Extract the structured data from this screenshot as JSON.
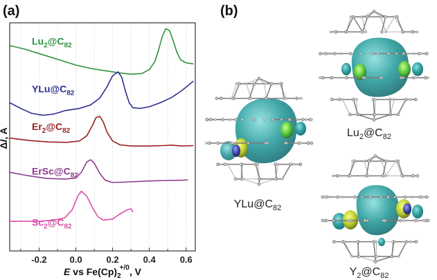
{
  "panels": {
    "a": "(a)",
    "b": "(b)"
  },
  "chart_data": {
    "type": "line",
    "title": "",
    "xlabel": {
      "var": "E",
      "text": " vs Fe(Cp)",
      "sub": "2",
      "sup": "+/0",
      "tail": ", V"
    },
    "ylabel": {
      "prefix": "Δ",
      "var": "I",
      "tail": ", A"
    },
    "xlim": [
      -0.36,
      0.65
    ],
    "xticks": [
      -0.2,
      0.0,
      0.2,
      0.4,
      0.6
    ],
    "xtick_labels": [
      "-0.2",
      "0.0",
      "0.2",
      "0.4",
      "0.6"
    ],
    "grid": "vertical dashed",
    "series": [
      {
        "label_main": "Lu",
        "label_sub": "2",
        "label_rest": "@C",
        "label_sub2": "82",
        "color": "#2e9140",
        "points": [
          [
            -0.36,
            0.9
          ],
          [
            -0.28,
            0.885
          ],
          [
            -0.18,
            0.86
          ],
          [
            -0.08,
            0.835
          ],
          [
            0.0,
            0.815
          ],
          [
            0.08,
            0.8
          ],
          [
            0.16,
            0.79
          ],
          [
            0.24,
            0.78
          ],
          [
            0.3,
            0.775
          ],
          [
            0.36,
            0.778
          ],
          [
            0.4,
            0.795
          ],
          [
            0.43,
            0.83
          ],
          [
            0.45,
            0.88
          ],
          [
            0.47,
            0.94
          ],
          [
            0.49,
            0.975
          ],
          [
            0.51,
            0.965
          ],
          [
            0.53,
            0.92
          ],
          [
            0.55,
            0.87
          ],
          [
            0.57,
            0.838
          ],
          [
            0.6,
            0.825
          ],
          [
            0.64,
            0.82
          ]
        ]
      },
      {
        "label_main": "YLu",
        "label_sub": "",
        "label_rest": "@C",
        "label_sub2": "82",
        "color": "#2d2f8c",
        "points": [
          [
            -0.36,
            0.65
          ],
          [
            -0.3,
            0.625
          ],
          [
            -0.24,
            0.603
          ],
          [
            -0.18,
            0.595
          ],
          [
            -0.12,
            0.6
          ],
          [
            -0.06,
            0.615
          ],
          [
            0.02,
            0.625
          ],
          [
            0.08,
            0.64
          ],
          [
            0.13,
            0.67
          ],
          [
            0.17,
            0.72
          ],
          [
            0.2,
            0.768
          ],
          [
            0.23,
            0.785
          ],
          [
            0.25,
            0.76
          ],
          [
            0.27,
            0.7
          ],
          [
            0.29,
            0.65
          ],
          [
            0.31,
            0.628
          ],
          [
            0.35,
            0.625
          ],
          [
            0.4,
            0.632
          ],
          [
            0.46,
            0.65
          ],
          [
            0.52,
            0.672
          ],
          [
            0.58,
            0.705
          ],
          [
            0.64,
            0.745
          ]
        ]
      },
      {
        "label_main": "Er",
        "label_sub": "2",
        "label_rest": "@C",
        "label_sub2": "82",
        "color": "#9b1e1e",
        "points": [
          [
            -0.36,
            0.495
          ],
          [
            -0.25,
            0.484
          ],
          [
            -0.15,
            0.478
          ],
          [
            -0.05,
            0.476
          ],
          [
            0.02,
            0.482
          ],
          [
            0.06,
            0.505
          ],
          [
            0.09,
            0.55
          ],
          [
            0.11,
            0.585
          ],
          [
            0.13,
            0.59
          ],
          [
            0.15,
            0.565
          ],
          [
            0.17,
            0.52
          ],
          [
            0.2,
            0.482
          ],
          [
            0.24,
            0.465
          ],
          [
            0.3,
            0.46
          ],
          [
            0.4,
            0.46
          ],
          [
            0.48,
            0.462
          ],
          [
            0.52,
            0.464
          ],
          [
            0.58,
            0.46
          ],
          [
            0.64,
            0.462
          ]
        ]
      },
      {
        "label_main": "ErSc",
        "label_sub": "",
        "label_rest": "@C",
        "label_sub2": "82",
        "color": "#8e3a8e",
        "points": [
          [
            -0.36,
            0.345
          ],
          [
            -0.26,
            0.33
          ],
          [
            -0.16,
            0.318
          ],
          [
            -0.06,
            0.315
          ],
          [
            0.0,
            0.32
          ],
          [
            0.03,
            0.345
          ],
          [
            0.06,
            0.39
          ],
          [
            0.08,
            0.4
          ],
          [
            0.1,
            0.385
          ],
          [
            0.13,
            0.34
          ],
          [
            0.16,
            0.31
          ],
          [
            0.2,
            0.3
          ],
          [
            0.3,
            0.303
          ],
          [
            0.4,
            0.307
          ],
          [
            0.5,
            0.309
          ],
          [
            0.58,
            0.31
          ],
          [
            0.61,
            0.312
          ]
        ]
      },
      {
        "label_main": "Sc",
        "label_sub": "2",
        "label_rest": "@C",
        "label_sub2": "82",
        "color": "#d94fa8",
        "points": [
          [
            -0.36,
            0.13
          ],
          [
            -0.28,
            0.13
          ],
          [
            -0.2,
            0.13
          ],
          [
            -0.12,
            0.135
          ],
          [
            -0.06,
            0.145
          ],
          [
            -0.02,
            0.18
          ],
          [
            0.01,
            0.24
          ],
          [
            0.03,
            0.262
          ],
          [
            0.06,
            0.24
          ],
          [
            0.09,
            0.19
          ],
          [
            0.12,
            0.15
          ],
          [
            0.15,
            0.135
          ],
          [
            0.2,
            0.14
          ],
          [
            0.24,
            0.162
          ],
          [
            0.28,
            0.18
          ],
          [
            0.3,
            0.185
          ],
          [
            0.31,
            0.17
          ]
        ]
      }
    ]
  },
  "molecules": [
    {
      "id": "ylu",
      "label_main": "YLu",
      "label_rest": "@C",
      "label_sub": "82"
    },
    {
      "id": "lu2",
      "label_main": "Lu",
      "label_sub1": "2",
      "label_rest": "@C",
      "label_sub": "82"
    },
    {
      "id": "y2",
      "label_main": "Y",
      "label_sub1": "2",
      "label_rest": "@C",
      "label_sub": "82"
    }
  ]
}
